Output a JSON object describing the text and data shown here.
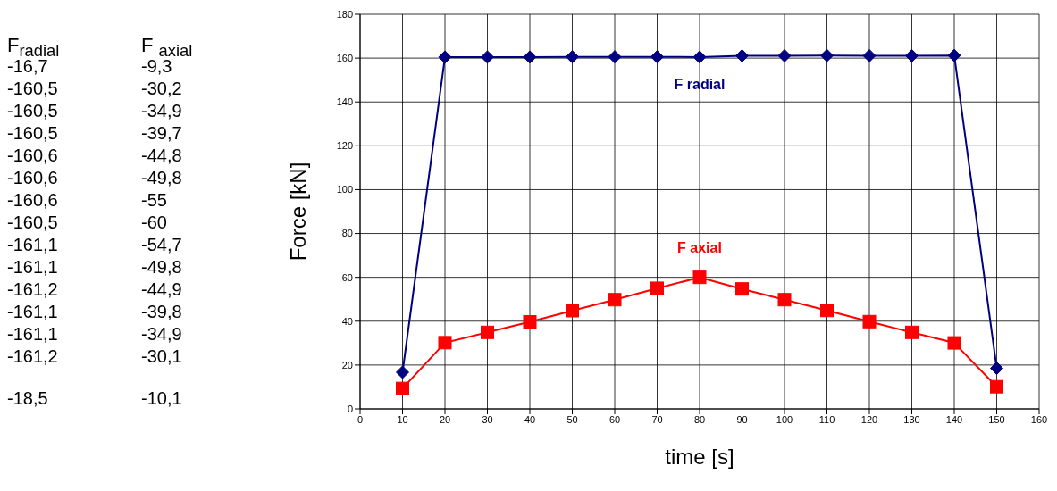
{
  "chart_data": [
    {
      "type": "other",
      "annotations": [
        "F$_{radial}$",
        "F $_{axial}$",
        "-16,7",
        "-9,3",
        "-160,5",
        "-30,2",
        "-160,5",
        "-34,9",
        "-160,5",
        "-39,7",
        "-160,6",
        "-44,8",
        "-160,6",
        "-49,8",
        "-160,6",
        "-55",
        "-160,5",
        "-60",
        "-161,1",
        "-54,7",
        "-161,1",
        "-49,8",
        "-161,2",
        "-44,9",
        "-161,1",
        "-39,8",
        "-161,1",
        "-34,9",
        "-161,2",
        "-30,1",
        "-18,5",
        "-10,1"
      ]
    },
    {
      "type": "line",
      "xlabel": "time [s]",
      "ylabel": "Force [kN]",
      "x": [
        10,
        20,
        30,
        40,
        50,
        60,
        70,
        80,
        90,
        100,
        110,
        120,
        130,
        140,
        150
      ],
      "series": [
        {
          "name": "F radial",
          "color": "#000080",
          "marker": "diamond",
          "values": [
            16.7,
            160.5,
            160.5,
            160.5,
            160.6,
            160.6,
            160.6,
            160.5,
            161.1,
            161.1,
            161.2,
            161.1,
            161.1,
            161.2,
            18.5
          ]
        },
        {
          "name": "F axial",
          "color": "#ff0000",
          "marker": "square",
          "values": [
            9.3,
            30.2,
            34.9,
            39.7,
            44.8,
            49.8,
            55,
            60,
            54.7,
            49.8,
            44.9,
            39.8,
            34.9,
            30.1,
            10.1
          ]
        }
      ],
      "xlim": [
        0,
        160
      ],
      "xticks": [
        0,
        10,
        20,
        30,
        40,
        50,
        60,
        70,
        80,
        90,
        100,
        110,
        120,
        130,
        140,
        150,
        160
      ],
      "ylim": [
        0,
        180
      ],
      "yticks": [
        0,
        20,
        40,
        60,
        80,
        100,
        120,
        140,
        160,
        180
      ],
      "grid": true,
      "line_style": "solid"
    }
  ]
}
